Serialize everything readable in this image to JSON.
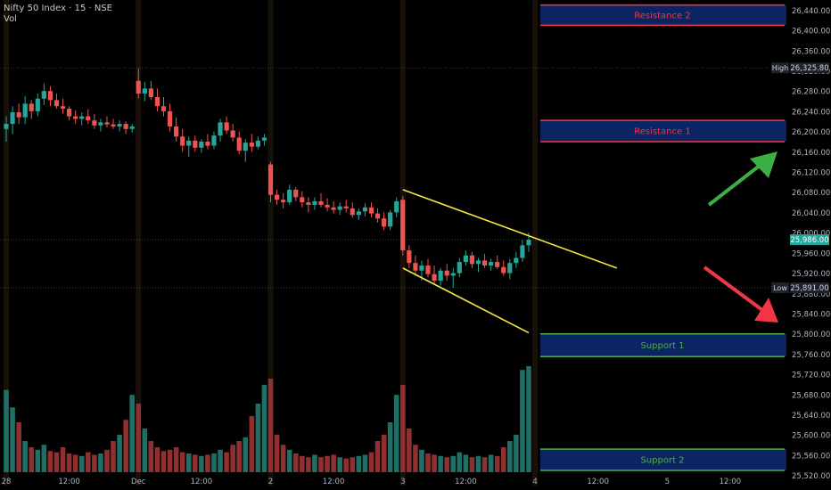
{
  "header": {
    "symbol": "Nifty 50 Index · 15 · NSE",
    "volume_label": "Vol"
  },
  "colors": {
    "background": "#000000",
    "up": "#26a69a",
    "down": "#ef5350",
    "vol_up": "#1f6f66",
    "vol_down": "#8f2f2f",
    "trendline": "#f5e642",
    "resistance_border": "#f23645",
    "resistance_text": "#f23645",
    "support_border": "#4caf50",
    "support_text": "#4caf50",
    "zone_fill": "#0c2461",
    "arrow_up": "#3cb043",
    "arrow_down": "#f23645",
    "axis_text": "#b2b5be"
  },
  "chart_data": {
    "type": "candlestick",
    "title": "Nifty 50 Index · 15 · NSE",
    "y_axis": {
      "min": 25500,
      "max": 26460,
      "ticks": [
        26440,
        26400,
        26360,
        26320,
        26280,
        26240,
        26200,
        26160,
        26120,
        26080,
        26040,
        26000,
        25960,
        25920,
        25880,
        25840,
        25800,
        25760,
        25720,
        25680,
        25640,
        25600,
        25560,
        25520
      ]
    },
    "x_axis": {
      "labels": [
        {
          "label": "28",
          "index": 0
        },
        {
          "label": "12:00",
          "index": 10
        },
        {
          "label": "Dec",
          "index": 21
        },
        {
          "label": "12:00",
          "index": 31
        },
        {
          "label": "2",
          "index": 42
        },
        {
          "label": "12:00",
          "index": 52
        },
        {
          "label": "3",
          "index": 63
        },
        {
          "label": "12:00",
          "index": 73
        },
        {
          "label": "4",
          "index": 84
        },
        {
          "label": "12:00",
          "index": 94
        },
        {
          "label": "5",
          "index": 105
        },
        {
          "label": "12:00",
          "index": 115
        }
      ],
      "session_starts": [
        0,
        21,
        42,
        63,
        84
      ]
    },
    "price_labels": [
      {
        "tag": "High",
        "value": 26325.8,
        "text": "26,325.80"
      },
      {
        "tag": "",
        "value": 25986.0,
        "text": "25,986.00"
      },
      {
        "tag": "Low",
        "value": 25891.0,
        "text": "25,891.00"
      }
    ],
    "zones": [
      {
        "label": "Resistance 2",
        "top": 26450,
        "bottom": 26410,
        "kind": "resistance"
      },
      {
        "label": "Resistance 1",
        "top": 26222,
        "bottom": 26180,
        "kind": "resistance"
      },
      {
        "label": "Support 1",
        "top": 25800,
        "bottom": 25755,
        "kind": "support"
      },
      {
        "label": "Support 2",
        "top": 25572,
        "bottom": 25530,
        "kind": "support"
      }
    ],
    "trendlines": [
      {
        "start_index": 63,
        "start_value": 26085,
        "end_index": 97,
        "end_value": 25930
      },
      {
        "start_index": 63,
        "start_value": 25930,
        "end_index": 83,
        "end_value": 25802
      }
    ],
    "candles": [
      {
        "o": 26205,
        "h": 26230,
        "l": 26180,
        "c": 26215,
        "v": 0.66
      },
      {
        "o": 26215,
        "h": 26250,
        "l": 26195,
        "c": 26238,
        "v": 0.52
      },
      {
        "o": 26238,
        "h": 26255,
        "l": 26215,
        "c": 26228,
        "v": 0.4
      },
      {
        "o": 26228,
        "h": 26270,
        "l": 26215,
        "c": 26255,
        "v": 0.25
      },
      {
        "o": 26255,
        "h": 26262,
        "l": 26225,
        "c": 26240,
        "v": 0.2
      },
      {
        "o": 26240,
        "h": 26275,
        "l": 26230,
        "c": 26265,
        "v": 0.18
      },
      {
        "o": 26265,
        "h": 26295,
        "l": 26252,
        "c": 26280,
        "v": 0.22
      },
      {
        "o": 26280,
        "h": 26290,
        "l": 26250,
        "c": 26262,
        "v": 0.17
      },
      {
        "o": 26262,
        "h": 26275,
        "l": 26245,
        "c": 26250,
        "v": 0.16
      },
      {
        "o": 26250,
        "h": 26265,
        "l": 26235,
        "c": 26245,
        "v": 0.2
      },
      {
        "o": 26245,
        "h": 26250,
        "l": 26222,
        "c": 26230,
        "v": 0.15
      },
      {
        "o": 26230,
        "h": 26242,
        "l": 26215,
        "c": 26225,
        "v": 0.14
      },
      {
        "o": 26225,
        "h": 26238,
        "l": 26212,
        "c": 26230,
        "v": 0.13
      },
      {
        "o": 26230,
        "h": 26244,
        "l": 26215,
        "c": 26222,
        "v": 0.16
      },
      {
        "o": 26222,
        "h": 26235,
        "l": 26205,
        "c": 26212,
        "v": 0.14
      },
      {
        "o": 26212,
        "h": 26225,
        "l": 26200,
        "c": 26218,
        "v": 0.15
      },
      {
        "o": 26218,
        "h": 26230,
        "l": 26208,
        "c": 26214,
        "v": 0.18
      },
      {
        "o": 26214,
        "h": 26225,
        "l": 26205,
        "c": 26210,
        "v": 0.25
      },
      {
        "o": 26210,
        "h": 26222,
        "l": 26200,
        "c": 26215,
        "v": 0.3
      },
      {
        "o": 26215,
        "h": 26220,
        "l": 26195,
        "c": 26205,
        "v": 0.42
      },
      {
        "o": 26205,
        "h": 26215,
        "l": 26198,
        "c": 26210,
        "v": 0.62
      },
      {
        "o": 26300,
        "h": 26325,
        "l": 26265,
        "c": 26275,
        "v": 0.55
      },
      {
        "o": 26275,
        "h": 26298,
        "l": 26260,
        "c": 26285,
        "v": 0.35
      },
      {
        "o": 26285,
        "h": 26300,
        "l": 26262,
        "c": 26268,
        "v": 0.25
      },
      {
        "o": 26268,
        "h": 26285,
        "l": 26240,
        "c": 26250,
        "v": 0.2
      },
      {
        "o": 26250,
        "h": 26268,
        "l": 26230,
        "c": 26240,
        "v": 0.17
      },
      {
        "o": 26240,
        "h": 26255,
        "l": 26200,
        "c": 26210,
        "v": 0.18
      },
      {
        "o": 26210,
        "h": 26228,
        "l": 26180,
        "c": 26190,
        "v": 0.2
      },
      {
        "o": 26190,
        "h": 26205,
        "l": 26160,
        "c": 26172,
        "v": 0.16
      },
      {
        "o": 26172,
        "h": 26190,
        "l": 26150,
        "c": 26182,
        "v": 0.15
      },
      {
        "o": 26182,
        "h": 26192,
        "l": 26160,
        "c": 26168,
        "v": 0.14
      },
      {
        "o": 26168,
        "h": 26185,
        "l": 26158,
        "c": 26180,
        "v": 0.13
      },
      {
        "o": 26180,
        "h": 26195,
        "l": 26165,
        "c": 26172,
        "v": 0.14
      },
      {
        "o": 26172,
        "h": 26200,
        "l": 26165,
        "c": 26192,
        "v": 0.15
      },
      {
        "o": 26192,
        "h": 26225,
        "l": 26180,
        "c": 26218,
        "v": 0.18
      },
      {
        "o": 26218,
        "h": 26230,
        "l": 26195,
        "c": 26202,
        "v": 0.16
      },
      {
        "o": 26202,
        "h": 26215,
        "l": 26180,
        "c": 26188,
        "v": 0.22
      },
      {
        "o": 26188,
        "h": 26200,
        "l": 26155,
        "c": 26162,
        "v": 0.25
      },
      {
        "o": 26162,
        "h": 26185,
        "l": 26140,
        "c": 26178,
        "v": 0.28
      },
      {
        "o": 26178,
        "h": 26195,
        "l": 26160,
        "c": 26170,
        "v": 0.45
      },
      {
        "o": 26170,
        "h": 26190,
        "l": 26165,
        "c": 26182,
        "v": 0.55
      },
      {
        "o": 26182,
        "h": 26195,
        "l": 26172,
        "c": 26188,
        "v": 0.7
      },
      {
        "o": 26135,
        "h": 26140,
        "l": 26060,
        "c": 26075,
        "v": 0.75
      },
      {
        "o": 26075,
        "h": 26085,
        "l": 26055,
        "c": 26065,
        "v": 0.3
      },
      {
        "o": 26065,
        "h": 26078,
        "l": 26048,
        "c": 26060,
        "v": 0.22
      },
      {
        "o": 26060,
        "h": 26095,
        "l": 26055,
        "c": 26085,
        "v": 0.18
      },
      {
        "o": 26085,
        "h": 26090,
        "l": 26062,
        "c": 26070,
        "v": 0.15
      },
      {
        "o": 26070,
        "h": 26082,
        "l": 26050,
        "c": 26060,
        "v": 0.13
      },
      {
        "o": 26060,
        "h": 26070,
        "l": 26040,
        "c": 26055,
        "v": 0.12
      },
      {
        "o": 26055,
        "h": 26070,
        "l": 26045,
        "c": 26062,
        "v": 0.14
      },
      {
        "o": 26062,
        "h": 26078,
        "l": 26050,
        "c": 26055,
        "v": 0.12
      },
      {
        "o": 26055,
        "h": 26068,
        "l": 26042,
        "c": 26050,
        "v": 0.13
      },
      {
        "o": 26050,
        "h": 26062,
        "l": 26038,
        "c": 26045,
        "v": 0.14
      },
      {
        "o": 26045,
        "h": 26060,
        "l": 26035,
        "c": 26052,
        "v": 0.12
      },
      {
        "o": 26052,
        "h": 26065,
        "l": 26040,
        "c": 26048,
        "v": 0.11
      },
      {
        "o": 26048,
        "h": 26060,
        "l": 26030,
        "c": 26035,
        "v": 0.12
      },
      {
        "o": 26035,
        "h": 26048,
        "l": 26025,
        "c": 26042,
        "v": 0.13
      },
      {
        "o": 26042,
        "h": 26058,
        "l": 26032,
        "c": 26050,
        "v": 0.14
      },
      {
        "o": 26050,
        "h": 26060,
        "l": 26030,
        "c": 26038,
        "v": 0.16
      },
      {
        "o": 26038,
        "h": 26048,
        "l": 26020,
        "c": 26028,
        "v": 0.25
      },
      {
        "o": 26028,
        "h": 26040,
        "l": 26005,
        "c": 26012,
        "v": 0.3
      },
      {
        "o": 26012,
        "h": 26045,
        "l": 26005,
        "c": 26040,
        "v": 0.4
      },
      {
        "o": 26040,
        "h": 26070,
        "l": 26030,
        "c": 26062,
        "v": 0.62
      },
      {
        "o": 26065,
        "h": 26072,
        "l": 25955,
        "c": 25965,
        "v": 0.7
      },
      {
        "o": 25965,
        "h": 25975,
        "l": 25930,
        "c": 25940,
        "v": 0.35
      },
      {
        "o": 25940,
        "h": 25955,
        "l": 25915,
        "c": 25925,
        "v": 0.22
      },
      {
        "o": 25925,
        "h": 25945,
        "l": 25905,
        "c": 25935,
        "v": 0.18
      },
      {
        "o": 25935,
        "h": 25948,
        "l": 25912,
        "c": 25918,
        "v": 0.15
      },
      {
        "o": 25918,
        "h": 25935,
        "l": 25898,
        "c": 25905,
        "v": 0.14
      },
      {
        "o": 25905,
        "h": 25930,
        "l": 25895,
        "c": 25925,
        "v": 0.13
      },
      {
        "o": 25925,
        "h": 25938,
        "l": 25905,
        "c": 25915,
        "v": 0.12
      },
      {
        "o": 25915,
        "h": 25930,
        "l": 25891,
        "c": 25920,
        "v": 0.13
      },
      {
        "o": 25920,
        "h": 25950,
        "l": 25912,
        "c": 25942,
        "v": 0.16
      },
      {
        "o": 25942,
        "h": 25965,
        "l": 25935,
        "c": 25955,
        "v": 0.14
      },
      {
        "o": 25955,
        "h": 25962,
        "l": 25930,
        "c": 25938,
        "v": 0.12
      },
      {
        "o": 25938,
        "h": 25950,
        "l": 25922,
        "c": 25945,
        "v": 0.13
      },
      {
        "o": 25945,
        "h": 25958,
        "l": 25930,
        "c": 25935,
        "v": 0.12
      },
      {
        "o": 25935,
        "h": 25948,
        "l": 25925,
        "c": 25942,
        "v": 0.14
      },
      {
        "o": 25942,
        "h": 25955,
        "l": 25928,
        "c": 25932,
        "v": 0.13
      },
      {
        "o": 25932,
        "h": 25945,
        "l": 25915,
        "c": 25920,
        "v": 0.2
      },
      {
        "o": 25920,
        "h": 25948,
        "l": 25908,
        "c": 25940,
        "v": 0.25
      },
      {
        "o": 25940,
        "h": 25962,
        "l": 25930,
        "c": 25950,
        "v": 0.3
      },
      {
        "o": 25950,
        "h": 25985,
        "l": 25942,
        "c": 25975,
        "v": 0.82
      },
      {
        "o": 25975,
        "h": 26000,
        "l": 25962,
        "c": 25986,
        "v": 0.85
      }
    ]
  }
}
